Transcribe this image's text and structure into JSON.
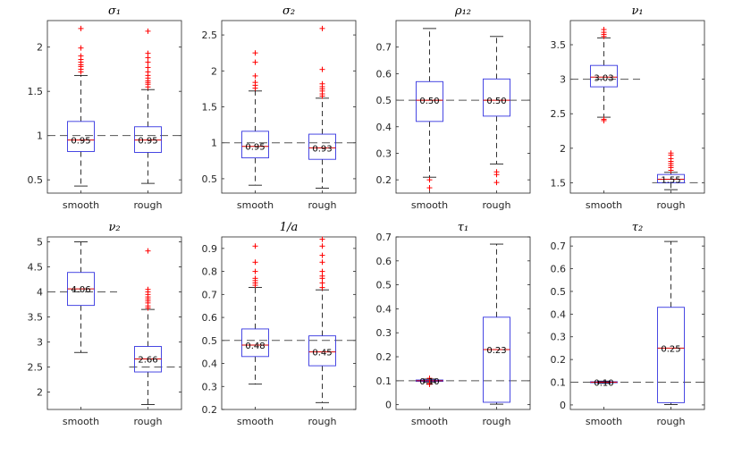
{
  "chart_data": [
    {
      "type": "box",
      "title": "σ₁",
      "categories": [
        "smooth",
        "rough"
      ],
      "ylim": [
        0.35,
        2.3
      ],
      "yticks": [
        0.5,
        1,
        1.5,
        2
      ],
      "ytick_labels": [
        "0.5",
        "1",
        "1.5",
        "2"
      ],
      "reference": 1.0,
      "ref_extent": "full",
      "boxes": [
        {
          "q1": 0.82,
          "median": 0.95,
          "q3": 1.16,
          "whisker_low": 0.43,
          "whisker_high": 1.68,
          "outliers": [
            1.72,
            1.75,
            1.78,
            1.8,
            1.83,
            1.86,
            1.9,
            1.99,
            2.21
          ],
          "label": "0.95"
        },
        {
          "q1": 0.81,
          "median": 0.95,
          "q3": 1.1,
          "whisker_low": 0.46,
          "whisker_high": 1.52,
          "outliers": [
            1.55,
            1.58,
            1.6,
            1.62,
            1.65,
            1.68,
            1.72,
            1.77,
            1.83,
            1.88,
            1.93,
            2.18
          ],
          "label": "0.95"
        }
      ]
    },
    {
      "type": "box",
      "title": "σ₂",
      "categories": [
        "smooth",
        "rough"
      ],
      "ylim": [
        0.3,
        2.7
      ],
      "yticks": [
        0.5,
        1,
        1.5,
        2,
        2.5
      ],
      "ytick_labels": [
        "0.5",
        "1",
        "1.5",
        "2",
        "2.5"
      ],
      "reference": 1.0,
      "ref_extent": "full",
      "boxes": [
        {
          "q1": 0.79,
          "median": 0.95,
          "q3": 1.16,
          "whisker_low": 0.41,
          "whisker_high": 1.72,
          "outliers": [
            1.76,
            1.8,
            1.84,
            1.93,
            2.12,
            2.25
          ],
          "label": "0.95"
        },
        {
          "q1": 0.77,
          "median": 0.93,
          "q3": 1.12,
          "whisker_low": 0.37,
          "whisker_high": 1.62,
          "outliers": [
            1.65,
            1.68,
            1.72,
            1.75,
            1.78,
            1.82,
            2.02,
            2.59
          ],
          "label": "0.93"
        }
      ]
    },
    {
      "type": "box",
      "title": "ρ₁₂",
      "categories": [
        "smooth",
        "rough"
      ],
      "ylim": [
        0.15,
        0.8
      ],
      "yticks": [
        0.2,
        0.3,
        0.4,
        0.5,
        0.6,
        0.7
      ],
      "ytick_labels": [
        "0.2",
        "0.3",
        "0.4",
        "0.5",
        "0.6",
        "0.7"
      ],
      "reference": 0.5,
      "ref_extent": "full",
      "boxes": [
        {
          "q1": 0.42,
          "median": 0.5,
          "q3": 0.57,
          "whisker_low": 0.21,
          "whisker_high": 0.77,
          "outliers": [
            0.2,
            0.17
          ],
          "label": "0.50"
        },
        {
          "q1": 0.44,
          "median": 0.5,
          "q3": 0.58,
          "whisker_low": 0.26,
          "whisker_high": 0.74,
          "outliers": [
            0.23,
            0.22,
            0.19
          ],
          "label": "0.50"
        }
      ]
    },
    {
      "type": "box",
      "title": "ν₁",
      "categories": [
        "smooth",
        "rough"
      ],
      "ylim": [
        1.35,
        3.85
      ],
      "yticks": [
        1.5,
        2,
        2.5,
        3,
        3.5
      ],
      "ytick_labels": [
        "1.5",
        "2",
        "2.5",
        "3",
        "3.5"
      ],
      "reference_segments": [
        {
          "value": 3.0,
          "from": "left",
          "to": "smooth-right"
        },
        {
          "value": 1.5,
          "from": "rough-left",
          "to": "right"
        }
      ],
      "boxes": [
        {
          "q1": 2.89,
          "median": 3.03,
          "q3": 3.2,
          "whisker_low": 2.45,
          "whisker_high": 3.6,
          "outliers": [
            2.42,
            2.4,
            3.62,
            3.65,
            3.68,
            3.72
          ],
          "label": "3.03"
        },
        {
          "q1": 1.5,
          "median": 1.55,
          "q3": 1.62,
          "whisker_low": 1.4,
          "whisker_high": 1.65,
          "outliers": [
            1.68,
            1.72,
            1.75,
            1.78,
            1.81,
            1.85,
            1.9,
            1.93
          ],
          "label": "1.55"
        }
      ]
    },
    {
      "type": "box",
      "title": "ν₂",
      "categories": [
        "smooth",
        "rough"
      ],
      "ylim": [
        1.65,
        5.1
      ],
      "yticks": [
        2,
        2.5,
        3,
        3.5,
        4,
        4.5,
        5
      ],
      "ytick_labels": [
        "2",
        "2.5",
        "3",
        "3.5",
        "4",
        "4.5",
        "5"
      ],
      "reference_segments": [
        {
          "value": 4.0,
          "from": "left",
          "to": "smooth-right"
        },
        {
          "value": 2.5,
          "from": "rough-left",
          "to": "right"
        }
      ],
      "boxes": [
        {
          "q1": 3.73,
          "median": 4.06,
          "q3": 4.39,
          "whisker_low": 2.79,
          "whisker_high": 5.0,
          "outliers": [],
          "label": "4.06"
        },
        {
          "q1": 2.4,
          "median": 2.66,
          "q3": 2.91,
          "whisker_low": 1.75,
          "whisker_high": 3.65,
          "outliers": [
            3.68,
            3.72,
            3.78,
            3.82,
            3.86,
            3.9,
            3.95,
            4.0,
            4.05,
            4.82
          ],
          "label": "2.66"
        }
      ]
    },
    {
      "type": "box",
      "title": "1/a",
      "categories": [
        "smooth",
        "rough"
      ],
      "ylim": [
        0.2,
        0.95
      ],
      "yticks": [
        0.2,
        0.3,
        0.4,
        0.5,
        0.6,
        0.7,
        0.8,
        0.9
      ],
      "ytick_labels": [
        "0.2",
        "0.3",
        "0.4",
        "0.5",
        "0.6",
        "0.7",
        "0.8",
        "0.9"
      ],
      "reference": 0.5,
      "ref_extent": "full",
      "boxes": [
        {
          "q1": 0.43,
          "median": 0.48,
          "q3": 0.55,
          "whisker_low": 0.31,
          "whisker_high": 0.73,
          "outliers": [
            0.74,
            0.75,
            0.76,
            0.77,
            0.8,
            0.84,
            0.91
          ],
          "label": "0.48"
        },
        {
          "q1": 0.39,
          "median": 0.45,
          "q3": 0.52,
          "whisker_low": 0.23,
          "whisker_high": 0.72,
          "outliers": [
            0.73,
            0.75,
            0.77,
            0.78,
            0.8,
            0.84,
            0.87,
            0.91,
            0.94
          ],
          "label": "0.45"
        }
      ]
    },
    {
      "type": "box",
      "title": "τ₁",
      "categories": [
        "smooth",
        "rough"
      ],
      "ylim": [
        -0.02,
        0.7
      ],
      "yticks": [
        0,
        0.1,
        0.2,
        0.3,
        0.4,
        0.5,
        0.6,
        0.7
      ],
      "ytick_labels": [
        "0",
        "0.1",
        "0.2",
        "0.3",
        "0.4",
        "0.5",
        "0.6",
        "0.7"
      ],
      "reference": 0.1,
      "ref_extent": "full",
      "boxes": [
        {
          "q1": 0.097,
          "median": 0.1,
          "q3": 0.103,
          "whisker_low": 0.093,
          "whisker_high": 0.107,
          "outliers": [
            0.088,
            0.085,
            0.11
          ],
          "label": "0.10"
        },
        {
          "q1": 0.01,
          "median": 0.23,
          "q3": 0.365,
          "whisker_low": 0.002,
          "whisker_high": 0.67,
          "outliers": [],
          "label": "0.23"
        }
      ]
    },
    {
      "type": "box",
      "title": "τ₂",
      "categories": [
        "smooth",
        "rough"
      ],
      "ylim": [
        -0.02,
        0.74
      ],
      "yticks": [
        0,
        0.1,
        0.2,
        0.3,
        0.4,
        0.5,
        0.6,
        0.7
      ],
      "ytick_labels": [
        "0",
        "0.1",
        "0.2",
        "0.3",
        "0.4",
        "0.5",
        "0.6",
        "0.7"
      ],
      "reference": 0.1,
      "ref_extent": "full",
      "boxes": [
        {
          "q1": 0.098,
          "median": 0.1,
          "q3": 0.102,
          "whisker_low": 0.095,
          "whisker_high": 0.105,
          "outliers": [],
          "label": "0.10"
        },
        {
          "q1": 0.01,
          "median": 0.25,
          "q3": 0.43,
          "whisker_low": 0.002,
          "whisker_high": 0.72,
          "outliers": [],
          "label": "0.25"
        }
      ]
    }
  ]
}
